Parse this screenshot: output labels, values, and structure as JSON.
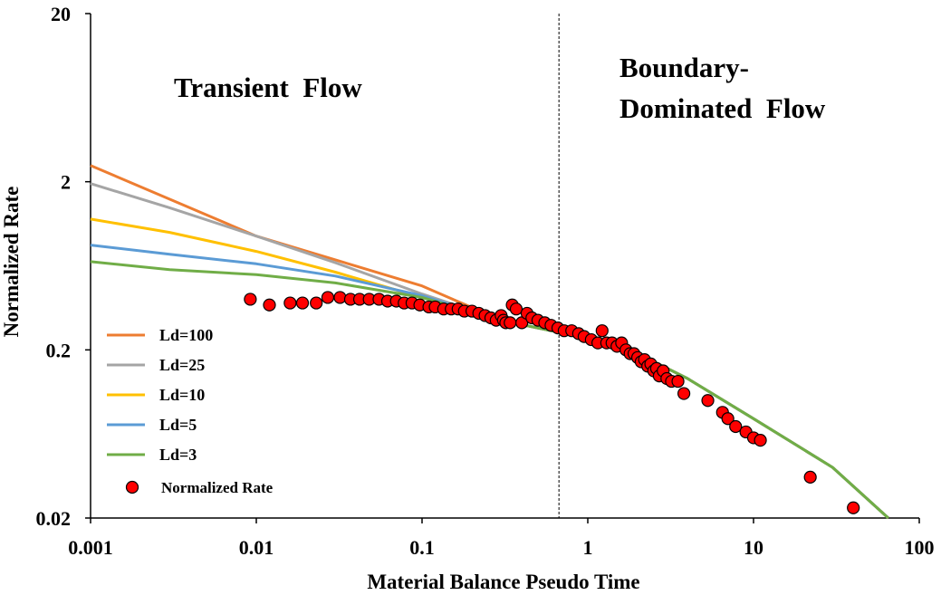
{
  "chart_data": {
    "type": "scatter",
    "title": "",
    "xlabel": "Material Balance Pseudo Time",
    "ylabel": "Normalized Rate",
    "xscale": "log",
    "yscale": "log",
    "xlim": [
      0.001,
      100
    ],
    "ylim": [
      0.02,
      20
    ],
    "xticks": [
      0.001,
      0.01,
      0.1,
      1,
      10,
      100
    ],
    "xtick_labels": [
      "0.001",
      "0.01",
      "0.1",
      "1",
      "10",
      "100"
    ],
    "yticks": [
      0.02,
      0.2,
      2,
      20
    ],
    "ytick_labels": [
      "0.02",
      "0.2",
      "2",
      "20"
    ],
    "grid": false,
    "legend_position": "bottom-left",
    "annotations": [
      {
        "lines": [
          "Transient  Flow"
        ],
        "anchor": "upper-left"
      },
      {
        "lines": [
          "Boundary-",
          "Dominated  Flow"
        ],
        "anchor": "upper-right"
      }
    ],
    "divider_x": 0.67,
    "series": [
      {
        "name": "Ld=100",
        "kind": "line",
        "color": "#ed7d31",
        "x": [
          0.001,
          0.01,
          0.1,
          0.3,
          0.5,
          1,
          2,
          4,
          10,
          30,
          65
        ],
        "y": [
          2.5,
          0.95,
          0.48,
          0.3,
          0.27,
          0.235,
          0.19,
          0.135,
          0.078,
          0.04,
          0.02
        ]
      },
      {
        "name": "Ld=25",
        "kind": "line",
        "color": "#a5a5a5",
        "x": [
          0.001,
          0.003,
          0.01,
          0.03,
          0.1,
          0.3,
          0.5,
          1,
          2,
          4,
          10,
          30,
          65
        ],
        "y": [
          1.95,
          1.4,
          0.95,
          0.66,
          0.43,
          0.3,
          0.27,
          0.235,
          0.19,
          0.135,
          0.078,
          0.04,
          0.02
        ]
      },
      {
        "name": "Ld=10",
        "kind": "line",
        "color": "#ffc000",
        "x": [
          0.001,
          0.003,
          0.01,
          0.03,
          0.1,
          0.3,
          0.5,
          1,
          2,
          4,
          10,
          30,
          65
        ],
        "y": [
          1.2,
          1.0,
          0.77,
          0.58,
          0.41,
          0.3,
          0.27,
          0.235,
          0.19,
          0.135,
          0.078,
          0.04,
          0.02
        ]
      },
      {
        "name": "Ld=5",
        "kind": "line",
        "color": "#5b9bd5",
        "x": [
          0.001,
          0.003,
          0.01,
          0.03,
          0.1,
          0.3,
          0.5,
          1,
          2,
          4,
          10,
          30,
          65
        ],
        "y": [
          0.84,
          0.74,
          0.65,
          0.55,
          0.42,
          0.3,
          0.27,
          0.235,
          0.19,
          0.135,
          0.078,
          0.04,
          0.02
        ]
      },
      {
        "name": "Ld=3",
        "kind": "line",
        "color": "#70ad47",
        "x": [
          0.001,
          0.003,
          0.01,
          0.03,
          0.1,
          0.3,
          0.5,
          1,
          2,
          4,
          10,
          30,
          65
        ],
        "y": [
          0.67,
          0.6,
          0.56,
          0.5,
          0.41,
          0.3,
          0.27,
          0.235,
          0.19,
          0.135,
          0.078,
          0.04,
          0.02
        ]
      },
      {
        "name": "Normalized Rate",
        "kind": "scatter",
        "color": "#ff0000",
        "x": [
          0.0092,
          0.012,
          0.016,
          0.019,
          0.023,
          0.027,
          0.032,
          0.037,
          0.042,
          0.048,
          0.055,
          0.062,
          0.07,
          0.078,
          0.087,
          0.097,
          0.11,
          0.12,
          0.135,
          0.15,
          0.165,
          0.18,
          0.2,
          0.22,
          0.24,
          0.26,
          0.28,
          0.3,
          0.31,
          0.32,
          0.34,
          0.35,
          0.37,
          0.4,
          0.43,
          0.46,
          0.5,
          0.55,
          0.6,
          0.66,
          0.72,
          0.8,
          0.88,
          0.95,
          1.05,
          1.15,
          1.22,
          1.3,
          1.4,
          1.5,
          1.6,
          1.7,
          1.8,
          1.9,
          2.0,
          2.1,
          2.2,
          2.3,
          2.4,
          2.5,
          2.6,
          2.7,
          2.85,
          3.0,
          3.2,
          3.5,
          3.8,
          5.3,
          6.5,
          7.0,
          7.8,
          9.0,
          10.0,
          11.0,
          22.0,
          40.0
        ],
        "y": [
          0.4,
          0.37,
          0.38,
          0.38,
          0.38,
          0.41,
          0.41,
          0.4,
          0.4,
          0.4,
          0.4,
          0.39,
          0.39,
          0.38,
          0.38,
          0.37,
          0.36,
          0.36,
          0.35,
          0.35,
          0.35,
          0.34,
          0.34,
          0.33,
          0.32,
          0.31,
          0.3,
          0.32,
          0.3,
          0.29,
          0.29,
          0.37,
          0.35,
          0.29,
          0.33,
          0.31,
          0.3,
          0.29,
          0.28,
          0.27,
          0.26,
          0.26,
          0.25,
          0.24,
          0.23,
          0.22,
          0.26,
          0.22,
          0.22,
          0.21,
          0.22,
          0.2,
          0.19,
          0.19,
          0.18,
          0.17,
          0.175,
          0.16,
          0.165,
          0.15,
          0.155,
          0.14,
          0.15,
          0.135,
          0.13,
          0.13,
          0.11,
          0.1,
          0.085,
          0.078,
          0.07,
          0.065,
          0.06,
          0.058,
          0.035,
          0.023
        ]
      }
    ]
  }
}
